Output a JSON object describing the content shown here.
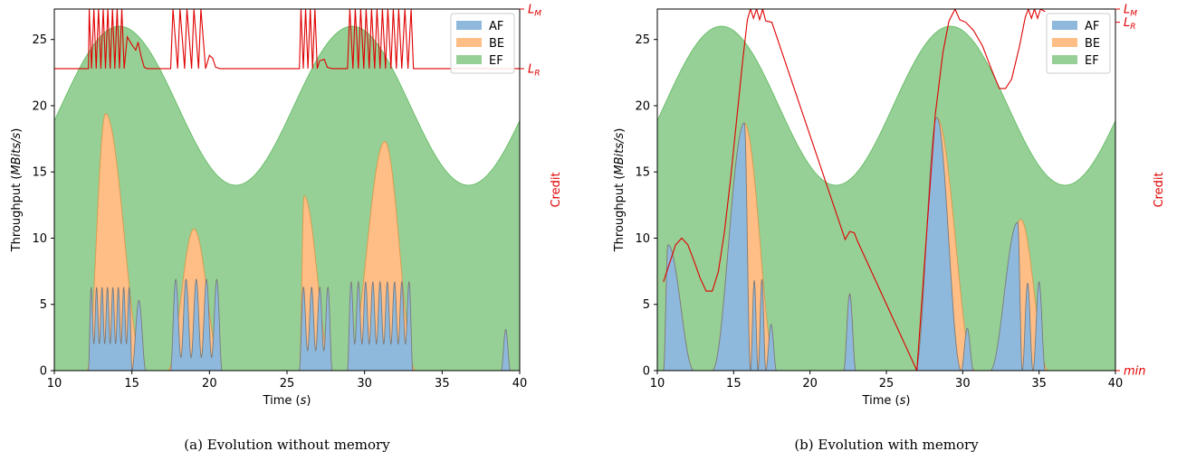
{
  "colors": {
    "AF": "#8fb9dc",
    "BE": "#ffbe86",
    "EF": "#96d096",
    "credit": "#e00000"
  },
  "chart_data": [
    {
      "type": "area",
      "panel": "a",
      "caption": "(a) Evolution without memory",
      "xlabel_main": "Time (",
      "xlabel_unit": "s",
      "xlabel_close": ")",
      "ylabel_main": "Throughput (",
      "ylabel_unit": "MBits/s",
      "ylabel_close": ")",
      "y2label": "Credit",
      "xlim": [
        10,
        40
      ],
      "ylim": [
        0,
        27.3
      ],
      "xticks": [
        10,
        15,
        20,
        25,
        30,
        35,
        40
      ],
      "yticks": [
        0,
        5,
        10,
        15,
        20,
        25
      ],
      "legend": [
        "AF",
        "BE",
        "EF"
      ],
      "legend_position": "upper right",
      "credit_levels": [
        {
          "label": "L",
          "sub": "M",
          "value": 27.3
        },
        {
          "label": "L",
          "sub": "R",
          "value": 22.8
        }
      ],
      "ef_wave": {
        "mean": 20,
        "amplitude": 6,
        "period": 15,
        "peak_at": 14.2
      },
      "series": [
        {
          "name": "BE",
          "bumps": [
            {
              "start": 12.1,
              "end": 15.8,
              "peak": 19.4,
              "peak_at": 13.3
            },
            {
              "start": 17.3,
              "end": 20.8,
              "peak": 10.7,
              "peak_at": 19.0
            },
            {
              "start": 25.8,
              "end": 27.9,
              "peak": 13.2,
              "peak_at": 26.1
            },
            {
              "start": 28.9,
              "end": 33.3,
              "peak": 17.3,
              "peak_at": 31.3
            }
          ]
        },
        {
          "name": "AF",
          "bursts": [
            {
              "start": 12.2,
              "end": 15.0,
              "count": 8,
              "top": 6.3,
              "base": 2.0
            },
            {
              "start": 15.0,
              "end": 15.9,
              "count": 1,
              "top": 5.3,
              "base": 0
            },
            {
              "start": 17.5,
              "end": 20.8,
              "count": 5,
              "top": 6.9,
              "base": 1.0
            },
            {
              "start": 25.8,
              "end": 27.9,
              "count": 4,
              "top": 6.3,
              "base": 1.5
            },
            {
              "start": 28.9,
              "end": 33.1,
              "count": 9,
              "top": 6.7,
              "base": 2.0
            },
            {
              "start": 38.8,
              "end": 39.4,
              "count": 1,
              "top": 3.1,
              "base": 0
            }
          ]
        },
        {
          "name": "Credit",
          "points": [
            [
              10,
              22.8
            ],
            [
              12.2,
              22.8
            ],
            [
              12.25,
              27.3
            ],
            [
              12.4,
              22.8
            ],
            [
              12.55,
              27.3
            ],
            [
              12.7,
              22.8
            ],
            [
              12.85,
              27.3
            ],
            [
              13.0,
              22.8
            ],
            [
              13.15,
              27.3
            ],
            [
              13.3,
              22.8
            ],
            [
              13.45,
              27.3
            ],
            [
              13.6,
              22.8
            ],
            [
              13.75,
              27.3
            ],
            [
              13.9,
              22.8
            ],
            [
              14.05,
              27.3
            ],
            [
              14.2,
              22.8
            ],
            [
              14.35,
              27.3
            ],
            [
              14.5,
              22.8
            ],
            [
              14.7,
              25.2
            ],
            [
              15.0,
              24.6
            ],
            [
              15.25,
              24.2
            ],
            [
              15.4,
              24.8
            ],
            [
              15.6,
              23.7
            ],
            [
              15.8,
              22.9
            ],
            [
              16.0,
              22.8
            ],
            [
              17.5,
              22.8
            ],
            [
              17.65,
              27.3
            ],
            [
              17.95,
              22.8
            ],
            [
              18.1,
              27.3
            ],
            [
              18.4,
              22.8
            ],
            [
              18.55,
              27.3
            ],
            [
              18.85,
              22.8
            ],
            [
              19.0,
              27.3
            ],
            [
              19.3,
              22.8
            ],
            [
              19.45,
              27.3
            ],
            [
              19.75,
              22.8
            ],
            [
              20.0,
              23.8
            ],
            [
              20.2,
              23.6
            ],
            [
              20.4,
              22.9
            ],
            [
              20.7,
              22.8
            ],
            [
              25.8,
              22.8
            ],
            [
              25.9,
              27.3
            ],
            [
              26.05,
              22.8
            ],
            [
              26.2,
              27.3
            ],
            [
              26.35,
              22.8
            ],
            [
              26.5,
              27.3
            ],
            [
              26.65,
              22.8
            ],
            [
              26.8,
              27.3
            ],
            [
              26.95,
              22.8
            ],
            [
              27.1,
              23.4
            ],
            [
              27.4,
              23.5
            ],
            [
              27.6,
              22.9
            ],
            [
              27.9,
              22.8
            ],
            [
              28.9,
              22.8
            ],
            [
              29.05,
              27.3
            ],
            [
              29.25,
              22.8
            ],
            [
              29.4,
              27.3
            ],
            [
              29.6,
              22.8
            ],
            [
              29.75,
              27.3
            ],
            [
              29.95,
              22.8
            ],
            [
              30.1,
              27.3
            ],
            [
              30.3,
              22.8
            ],
            [
              30.45,
              27.3
            ],
            [
              30.65,
              22.8
            ],
            [
              30.8,
              27.3
            ],
            [
              31.0,
              22.8
            ],
            [
              31.15,
              27.3
            ],
            [
              31.35,
              22.8
            ],
            [
              31.5,
              27.3
            ],
            [
              31.7,
              22.8
            ],
            [
              31.85,
              27.3
            ],
            [
              32.05,
              22.8
            ],
            [
              32.2,
              27.3
            ],
            [
              32.4,
              22.8
            ],
            [
              32.6,
              27.3
            ],
            [
              32.8,
              22.8
            ],
            [
              33.0,
              27.3
            ],
            [
              33.15,
              22.8
            ],
            [
              40,
              22.8
            ]
          ]
        }
      ]
    },
    {
      "type": "area",
      "panel": "b",
      "caption": "(b) Evolution with memory",
      "xlabel_main": "Time (",
      "xlabel_unit": "s",
      "xlabel_close": ")",
      "ylabel_main": "Throughput (",
      "ylabel_unit": "MBits/s",
      "ylabel_close": ")",
      "y2label": "Credit",
      "xlim": [
        10,
        40
      ],
      "ylim": [
        0,
        27.3
      ],
      "xticks": [
        10,
        15,
        20,
        25,
        30,
        35,
        40
      ],
      "yticks": [
        0,
        5,
        10,
        15,
        20,
        25
      ],
      "legend": [
        "AF",
        "BE",
        "EF"
      ],
      "legend_position": "upper right",
      "credit_levels": [
        {
          "label": "L",
          "sub": "M",
          "value": 27.3
        },
        {
          "label": "L",
          "sub": "R",
          "value": 26.3
        },
        {
          "label": "min",
          "sub": "",
          "value": 0
        }
      ],
      "ef_wave": {
        "mean": 20,
        "amplitude": 6,
        "period": 15,
        "peak_at": 14.2
      },
      "series": [
        {
          "name": "BE",
          "bumps": [
            {
              "start": 10.4,
              "end": 12.4,
              "peak": 9.5,
              "peak_at": 10.7
            },
            {
              "start": 13.6,
              "end": 17.8,
              "peak": 18.7,
              "peak_at": 15.7
            },
            {
              "start": 22.2,
              "end": 23.0,
              "peak": 5.8,
              "peak_at": 22.6
            },
            {
              "start": 26.9,
              "end": 30.8,
              "peak": 19.1,
              "peak_at": 28.3
            },
            {
              "start": 31.8,
              "end": 35.6,
              "peak": 11.4,
              "peak_at": 33.8
            }
          ]
        },
        {
          "name": "AF",
          "bumps": [
            {
              "start": 10.4,
              "end": 12.4,
              "peak": 9.5,
              "peak_at": 10.7
            },
            {
              "start": 13.6,
              "end": 16.1,
              "peak": 18.7,
              "peak_at": 15.7
            },
            {
              "start": 16.1,
              "end": 16.6,
              "peak": 6.8,
              "peak_at": 16.35
            },
            {
              "start": 16.6,
              "end": 17.1,
              "peak": 6.9,
              "peak_at": 16.85
            },
            {
              "start": 17.1,
              "end": 17.8,
              "peak": 3.5,
              "peak_at": 17.45
            },
            {
              "start": 22.2,
              "end": 23.0,
              "peak": 5.8,
              "peak_at": 22.6
            },
            {
              "start": 26.9,
              "end": 29.9,
              "peak": 19.1,
              "peak_at": 28.3
            },
            {
              "start": 29.9,
              "end": 30.7,
              "peak": 3.2,
              "peak_at": 30.3
            },
            {
              "start": 31.8,
              "end": 33.9,
              "peak": 11.2,
              "peak_at": 33.6
            },
            {
              "start": 33.9,
              "end": 34.6,
              "peak": 6.6,
              "peak_at": 34.25
            },
            {
              "start": 34.6,
              "end": 35.4,
              "peak": 6.7,
              "peak_at": 35.0
            }
          ]
        },
        {
          "name": "Credit",
          "points": [
            [
              10.4,
              6.7
            ],
            [
              10.8,
              8.1
            ],
            [
              11.2,
              9.5
            ],
            [
              11.6,
              10.0
            ],
            [
              12.0,
              9.5
            ],
            [
              12.4,
              8.3
            ],
            [
              12.8,
              7.0
            ],
            [
              13.2,
              6.0
            ],
            [
              13.6,
              6.0
            ],
            [
              14.0,
              7.5
            ],
            [
              14.4,
              10.5
            ],
            [
              14.8,
              14.5
            ],
            [
              15.2,
              19.0
            ],
            [
              15.6,
              23.5
            ],
            [
              15.9,
              26.5
            ],
            [
              16.1,
              27.3
            ],
            [
              16.3,
              26.6
            ],
            [
              16.5,
              27.3
            ],
            [
              16.7,
              26.5
            ],
            [
              16.9,
              27.3
            ],
            [
              17.1,
              26.4
            ],
            [
              17.5,
              26.3
            ],
            [
              22.3,
              9.9
            ],
            [
              22.6,
              10.5
            ],
            [
              22.9,
              10.4
            ],
            [
              23.1,
              9.8
            ],
            [
              27.0,
              0
            ],
            [
              27.6,
              9.8
            ],
            [
              28.2,
              19.3
            ],
            [
              28.7,
              24.0
            ],
            [
              29.1,
              26.4
            ],
            [
              29.5,
              27.3
            ],
            [
              29.8,
              26.5
            ],
            [
              30.2,
              26.3
            ],
            [
              30.7,
              25.7
            ],
            [
              31.3,
              24.5
            ],
            [
              31.9,
              22.7
            ],
            [
              32.4,
              21.3
            ],
            [
              32.8,
              21.3
            ],
            [
              33.2,
              22.0
            ],
            [
              33.7,
              24.4
            ],
            [
              34.1,
              26.7
            ],
            [
              34.3,
              27.3
            ],
            [
              34.5,
              26.6
            ],
            [
              34.7,
              27.3
            ],
            [
              34.9,
              26.6
            ],
            [
              35.1,
              27.3
            ],
            [
              35.4,
              27.1
            ]
          ]
        }
      ]
    }
  ]
}
